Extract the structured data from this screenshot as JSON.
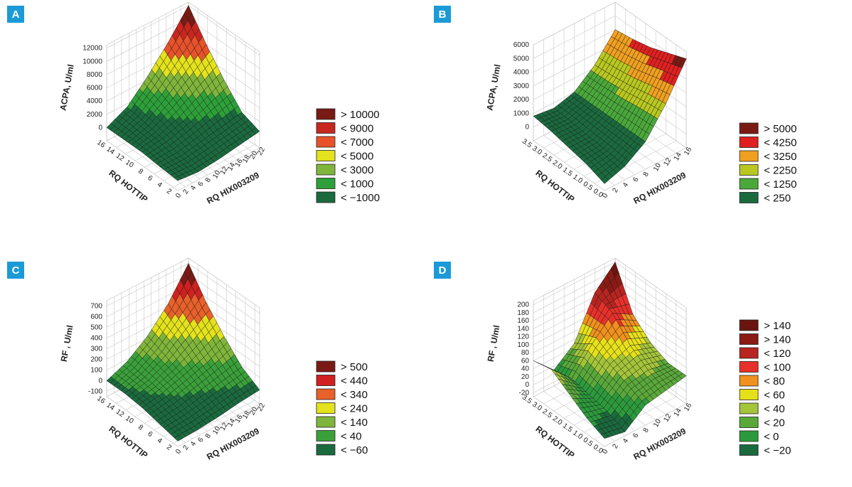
{
  "chart_data": [
    {
      "type": "surface3d",
      "panel": "A",
      "zlabel": "ACPA, U/ml",
      "xlabel": "RQ HOTTIP",
      "ylabel": "RQ HIX003209",
      "xlim": [
        1,
        16
      ],
      "ylim": [
        0,
        22
      ],
      "zlim": [
        -2000,
        12500
      ],
      "xticks": [
        2,
        4,
        6,
        8,
        10,
        12,
        14,
        16
      ],
      "yticks": [
        0,
        2,
        4,
        6,
        8,
        10,
        12,
        14,
        16,
        18,
        20,
        22
      ],
      "zticks": [
        0,
        2000,
        4000,
        6000,
        8000,
        10000,
        12000
      ],
      "x": [
        1,
        4.75,
        8.5,
        12.25,
        16
      ],
      "y": [
        0,
        5.5,
        11,
        16.5,
        22
      ],
      "z": [
        [
          -500,
          -800,
          -500,
          0,
          500
        ],
        [
          -300,
          -300,
          300,
          900,
          1500
        ],
        [
          0,
          500,
          1500,
          3000,
          4500
        ],
        [
          0,
          1000,
          3000,
          5500,
          8000
        ],
        [
          0,
          1500,
          4500,
          8000,
          12000
        ]
      ],
      "legend": [
        {
          "label": "> 10000",
          "color": "#7a1a14"
        },
        {
          "label": "< 9000",
          "color": "#c8261f"
        },
        {
          "label": "< 7000",
          "color": "#e8522a"
        },
        {
          "label": "< 5000",
          "color": "#e3e21c"
        },
        {
          "label": "< 3000",
          "color": "#7fb53a"
        },
        {
          "label": "< 1000",
          "color": "#2da039"
        },
        {
          "label": "< −1000",
          "color": "#1a6a3e"
        }
      ]
    },
    {
      "type": "surface3d",
      "panel": "B",
      "zlabel": "ACPA, U/ml",
      "xlabel": "RQ HOTTIP",
      "ylabel": "RQ HIX003209",
      "xlim": [
        0,
        3.5
      ],
      "ylim": [
        0,
        16
      ],
      "zlim": [
        -1000,
        6000
      ],
      "xticks": [
        {
          "value": 0,
          "label": "0.0"
        },
        0.5,
        {
          "value": 1,
          "label": "1.0"
        },
        1.5,
        {
          "value": 2,
          "label": "2.0"
        },
        2.5,
        {
          "value": 3,
          "label": "3.0"
        },
        3.5
      ],
      "yticks": [
        0,
        2,
        4,
        6,
        8,
        10,
        12,
        14,
        16
      ],
      "zticks": [
        0,
        1000,
        2000,
        3000,
        4000,
        5000,
        6000
      ],
      "x": [
        0,
        0.875,
        1.75,
        2.625,
        3.5
      ],
      "y": [
        0,
        4,
        8,
        12,
        16
      ],
      "z": [
        [
          -500,
          0,
          1000,
          3000,
          5500
        ],
        [
          0,
          200,
          1000,
          2800,
          5000
        ],
        [
          300,
          300,
          1000,
          2500,
          4500
        ],
        [
          600,
          500,
          1000,
          2300,
          4200
        ],
        [
          800,
          600,
          1000,
          2200,
          4000
        ]
      ],
      "legend": [
        {
          "label": "> 5000",
          "color": "#7a1a14"
        },
        {
          "label": "< 4250",
          "color": "#e02020"
        },
        {
          "label": "< 3250",
          "color": "#f0a020"
        },
        {
          "label": "< 2250",
          "color": "#b8c820"
        },
        {
          "label": "< 1250",
          "color": "#4aa83a"
        },
        {
          "label": "< 250",
          "color": "#1a6a3e"
        }
      ]
    },
    {
      "type": "surface3d",
      "panel": "C",
      "zlabel": "RF , U/ml",
      "xlabel": "RQ HOTTIP",
      "ylabel": "RQ HIX003209",
      "xlim": [
        1,
        16
      ],
      "ylim": [
        0,
        22
      ],
      "zlim": [
        -150,
        750
      ],
      "xticks": [
        2,
        4,
        6,
        8,
        10,
        12,
        14,
        16
      ],
      "yticks": [
        0,
        2,
        4,
        6,
        8,
        10,
        12,
        14,
        16,
        18,
        20,
        22
      ],
      "zticks": [
        -100,
        0,
        100,
        200,
        300,
        400,
        500,
        600,
        700
      ],
      "x": [
        1,
        4.75,
        8.5,
        12.25,
        16
      ],
      "y": [
        0,
        5.5,
        11,
        16.5,
        22
      ],
      "z": [
        [
          -100,
          -90,
          -70,
          -40,
          -20
        ],
        [
          -60,
          -40,
          0,
          40,
          80
        ],
        [
          -20,
          20,
          80,
          150,
          250
        ],
        [
          0,
          50,
          150,
          300,
          450
        ],
        [
          0,
          80,
          220,
          420,
          700
        ]
      ],
      "legend": [
        {
          "label": "> 500",
          "color": "#7a1a14"
        },
        {
          "label": "< 440",
          "color": "#d02020"
        },
        {
          "label": "< 340",
          "color": "#e8602a"
        },
        {
          "label": "< 240",
          "color": "#e3e21c"
        },
        {
          "label": "< 140",
          "color": "#7fb53a"
        },
        {
          "label": "< 40",
          "color": "#3aa03a"
        },
        {
          "label": "< −60",
          "color": "#1a6a3e"
        }
      ]
    },
    {
      "type": "surface3d",
      "panel": "D",
      "zlabel": "RF , U/ml",
      "xlabel": "RQ HOTTIP",
      "ylabel": "RQ HIX003209",
      "xlim": [
        0,
        3.5
      ],
      "ylim": [
        0,
        16
      ],
      "zlim": [
        -30,
        210
      ],
      "xticks": [
        {
          "value": 0,
          "label": "0.0"
        },
        0.5,
        {
          "value": 1,
          "label": "1.0"
        },
        1.5,
        {
          "value": 2,
          "label": "2.0"
        },
        2.5,
        {
          "value": 3,
          "label": "3.0"
        },
        3.5
      ],
      "yticks": [
        0,
        2,
        4,
        6,
        8,
        10,
        12,
        14,
        16
      ],
      "zticks": [
        -20,
        0,
        20,
        40,
        60,
        80,
        100,
        120,
        140,
        160,
        180,
        200
      ],
      "x": [
        0,
        0.875,
        1.75,
        2.625,
        3.5
      ],
      "y": [
        0,
        4,
        8,
        12,
        16
      ],
      "z": [
        [
          -10,
          -20,
          20,
          30,
          40
        ],
        [
          10,
          0,
          40,
          50,
          40
        ],
        [
          40,
          10,
          60,
          80,
          60
        ],
        [
          70,
          20,
          80,
          130,
          100
        ],
        [
          60,
          10,
          50,
          150,
          200
        ]
      ],
      "legend": [
        {
          "label": "> 140",
          "color": "#6b1510"
        },
        {
          "label": "> 140",
          "color": "#8a1a14"
        },
        {
          "label": "< 120",
          "color": "#b82420"
        },
        {
          "label": "< 100",
          "color": "#e8302a"
        },
        {
          "label": "< 80",
          "color": "#f0901e"
        },
        {
          "label": "< 60",
          "color": "#e6e01a"
        },
        {
          "label": "< 40",
          "color": "#a4c43a"
        },
        {
          "label": "< 20",
          "color": "#5aa83a"
        },
        {
          "label": "< 0",
          "color": "#2c9a3c"
        },
        {
          "label": "< −20",
          "color": "#1a6a3e"
        }
      ]
    }
  ]
}
